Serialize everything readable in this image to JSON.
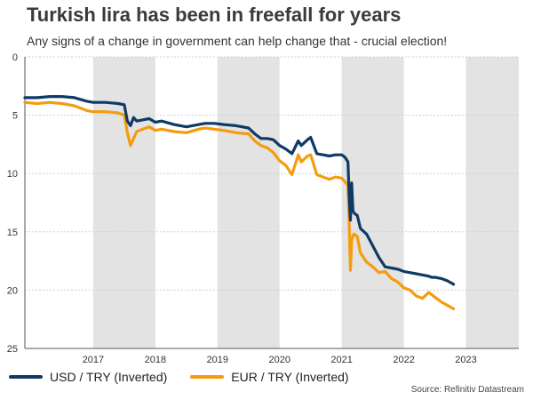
{
  "chart_data": {
    "type": "line",
    "title": "Turkish lira has been in freefall for years",
    "subtitle": "Any signs of a change in government can help change that - crucial election!",
    "source": "Source: Refinitiv Datastream",
    "y_axis": {
      "inverted": true,
      "min": 0,
      "max": 25,
      "ticks": [
        "0",
        "5",
        "10",
        "15",
        "20",
        "25"
      ],
      "grid": true
    },
    "x_axis": {
      "min": 2016.4,
      "max": 2024.35,
      "ticks": [
        "2017",
        "2018",
        "2019",
        "2020",
        "2021",
        "2022",
        "2023"
      ]
    },
    "shaded_years": [
      [
        2017.5,
        2018.5
      ],
      [
        2019.5,
        2020.5
      ],
      [
        2021.5,
        2022.5
      ],
      [
        2023.5,
        2024.35
      ]
    ],
    "legend_position": "bottom-left",
    "series": [
      {
        "name": "USD / TRY (Inverted)",
        "color": "#0f3a66",
        "x": [
          2016.4,
          2016.6,
          2016.8,
          2017.0,
          2017.2,
          2017.4,
          2017.5,
          2017.7,
          2017.9,
          2018.0,
          2018.05,
          2018.1,
          2018.15,
          2018.2,
          2018.3,
          2018.4,
          2018.5,
          2018.6,
          2018.8,
          2019.0,
          2019.2,
          2019.3,
          2019.45,
          2019.6,
          2019.8,
          2020.0,
          2020.1,
          2020.2,
          2020.3,
          2020.4,
          2020.5,
          2020.6,
          2020.7,
          2020.8,
          2020.85,
          2020.95,
          2021.0,
          2021.1,
          2021.2,
          2021.3,
          2021.4,
          2021.5,
          2021.55,
          2021.6,
          2021.62,
          2021.64,
          2021.66,
          2021.68,
          2021.7,
          2021.75,
          2021.8,
          2021.9,
          2022.0,
          2022.1,
          2022.2,
          2022.3,
          2022.4,
          2022.5,
          2022.6,
          2022.7,
          2022.8,
          2022.9,
          2022.95,
          2023.0,
          2023.1,
          2023.2,
          2023.3
        ],
        "values": [
          3.5,
          3.5,
          3.4,
          3.4,
          3.5,
          3.8,
          3.9,
          3.9,
          4.0,
          4.1,
          5.5,
          5.9,
          5.2,
          5.5,
          5.4,
          5.3,
          5.6,
          5.5,
          5.8,
          6.0,
          5.8,
          5.7,
          5.7,
          5.8,
          5.9,
          6.1,
          6.6,
          7.0,
          7.0,
          7.1,
          7.6,
          7.9,
          8.3,
          7.2,
          7.6,
          7.1,
          6.9,
          8.3,
          8.4,
          8.5,
          8.4,
          8.4,
          8.6,
          9.0,
          12.0,
          14.0,
          10.8,
          13.2,
          13.4,
          13.6,
          14.7,
          15.2,
          16.2,
          17.2,
          18.0,
          18.1,
          18.2,
          18.4,
          18.5,
          18.6,
          18.7,
          18.8,
          18.9,
          18.9,
          19.0,
          19.2,
          19.5
        ]
      },
      {
        "name": "EUR / TRY (Inverted)",
        "color": "#f59c0d",
        "x": [
          2016.4,
          2016.6,
          2016.8,
          2017.0,
          2017.2,
          2017.4,
          2017.5,
          2017.7,
          2017.9,
          2018.0,
          2018.05,
          2018.1,
          2018.15,
          2018.2,
          2018.3,
          2018.4,
          2018.5,
          2018.6,
          2018.8,
          2019.0,
          2019.2,
          2019.3,
          2019.45,
          2019.6,
          2019.8,
          2020.0,
          2020.1,
          2020.2,
          2020.3,
          2020.4,
          2020.5,
          2020.6,
          2020.7,
          2020.8,
          2020.85,
          2020.95,
          2021.0,
          2021.1,
          2021.2,
          2021.3,
          2021.4,
          2021.5,
          2021.55,
          2021.6,
          2021.62,
          2021.64,
          2021.66,
          2021.68,
          2021.7,
          2021.75,
          2021.8,
          2021.9,
          2022.0,
          2022.1,
          2022.2,
          2022.3,
          2022.4,
          2022.5,
          2022.6,
          2022.7,
          2022.8,
          2022.9,
          2022.95,
          2023.0,
          2023.1,
          2023.2,
          2023.3
        ],
        "values": [
          3.9,
          4.0,
          3.9,
          4.0,
          4.2,
          4.6,
          4.7,
          4.7,
          4.8,
          5.0,
          6.5,
          7.6,
          7.0,
          6.4,
          6.2,
          6.0,
          6.3,
          6.2,
          6.4,
          6.5,
          6.2,
          6.1,
          6.2,
          6.3,
          6.5,
          6.6,
          7.2,
          7.6,
          7.8,
          8.2,
          8.9,
          9.3,
          10.1,
          8.4,
          9.0,
          8.5,
          8.4,
          10.1,
          10.3,
          10.5,
          10.3,
          10.4,
          10.7,
          11.0,
          14.5,
          18.3,
          15.7,
          15.3,
          15.2,
          15.4,
          16.8,
          17.6,
          18.0,
          18.5,
          18.4,
          19.0,
          19.3,
          19.8,
          20.0,
          20.5,
          20.7,
          20.2,
          20.4,
          20.6,
          21.0,
          21.3,
          21.6
        ]
      }
    ]
  }
}
